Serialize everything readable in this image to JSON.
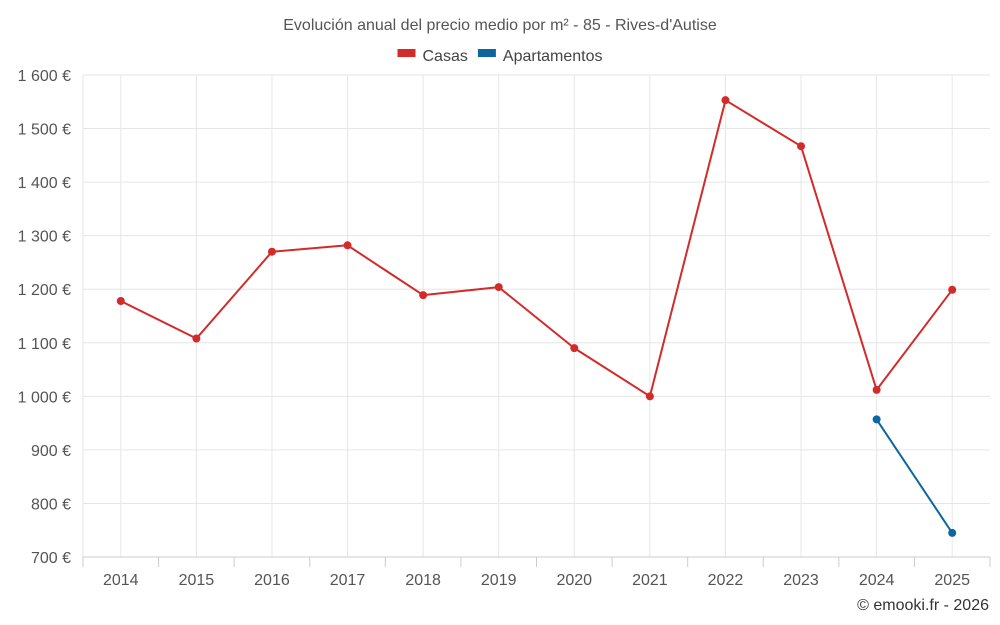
{
  "chart_data": {
    "type": "line",
    "title": "Evolución anual del precio medio por m² - 85 - Rives-d'Autise",
    "x": [
      "2014",
      "2015",
      "2016",
      "2017",
      "2018",
      "2019",
      "2020",
      "2021",
      "2022",
      "2023",
      "2024",
      "2025"
    ],
    "series": [
      {
        "name": "Casas",
        "color": "#d32a2a",
        "values": [
          1178,
          1108,
          1270,
          1282,
          1189,
          1204,
          1090,
          1000,
          1553,
          1467,
          1012,
          1199
        ]
      },
      {
        "name": "Apartamentos",
        "color": "#0d66a0",
        "values": [
          null,
          null,
          null,
          null,
          null,
          null,
          null,
          null,
          null,
          null,
          957,
          745
        ]
      }
    ],
    "ylim": [
      700,
      1600
    ],
    "yticks": [
      700,
      800,
      900,
      1000,
      1100,
      1200,
      1300,
      1400,
      1500,
      1600
    ],
    "ytick_labels": [
      "700 €",
      "800 €",
      "900 €",
      "1 000 €",
      "1 100 €",
      "1 200 €",
      "1 300 €",
      "1 400 €",
      "1 500 €",
      "1 600 €"
    ],
    "xlabel": "",
    "ylabel": "",
    "grid": true,
    "legend_position": "top-center"
  },
  "credit": "© emooki.fr - 2026",
  "colors": {
    "grid": "#e6e6e6",
    "axis": "#cccccc"
  }
}
